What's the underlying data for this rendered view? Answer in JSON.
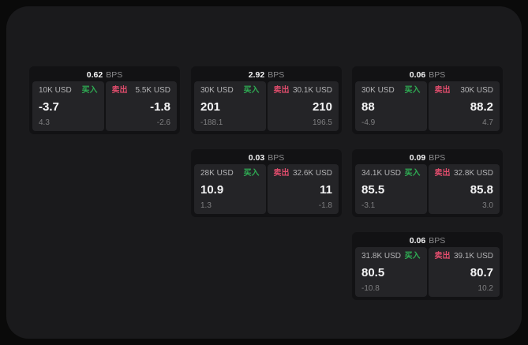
{
  "labels": {
    "bps_unit": "BPS",
    "buy": "买入",
    "sell": "卖出"
  },
  "colors": {
    "page_bg": "#0a0a0a",
    "surface_bg": "#1a1a1c",
    "card_bg": "#121214",
    "panel_bg": "#242427",
    "buy_green": "#2fae54",
    "sell_red": "#e14d6d",
    "value_white": "#f5f5f6",
    "label_gray": "#b3b3b5",
    "delta_gray": "#7f7f81"
  },
  "cards": [
    {
      "bps": "0.62",
      "buy": {
        "size": "10K USD",
        "value": "-3.7",
        "delta": "4.3"
      },
      "sell": {
        "size": "5.5K USD",
        "value": "-1.8",
        "delta": "-2.6"
      }
    },
    {
      "bps": "2.92",
      "buy": {
        "size": "30K USD",
        "value": "201",
        "delta": "-188.1"
      },
      "sell": {
        "size": "30.1K USD",
        "value": "210",
        "delta": "196.5"
      }
    },
    {
      "bps": "0.06",
      "buy": {
        "size": "30K USD",
        "value": "88",
        "delta": "-4.9"
      },
      "sell": {
        "size": "30K USD",
        "value": "88.2",
        "delta": "4.7"
      }
    },
    {
      "bps": "0.03",
      "buy": {
        "size": "28K USD",
        "value": "10.9",
        "delta": "1.3"
      },
      "sell": {
        "size": "32.6K USD",
        "value": "11",
        "delta": "-1.8"
      }
    },
    {
      "bps": "0.09",
      "buy": {
        "size": "34.1K USD",
        "value": "85.5",
        "delta": "-3.1"
      },
      "sell": {
        "size": "32.8K USD",
        "value": "85.8",
        "delta": "3.0"
      }
    },
    {
      "bps": "0.06",
      "buy": {
        "size": "31.8K USD",
        "value": "80.5",
        "delta": "-10.8"
      },
      "sell": {
        "size": "39.1K USD",
        "value": "80.7",
        "delta": "10.2"
      }
    }
  ]
}
